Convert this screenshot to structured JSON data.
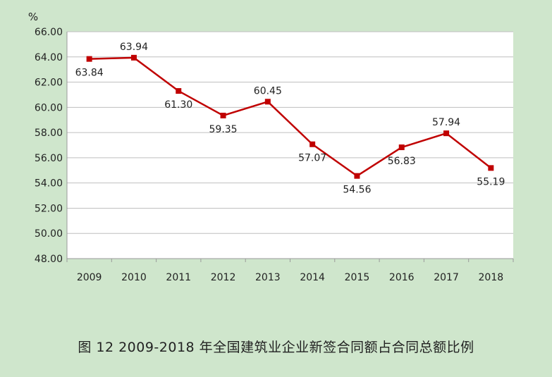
{
  "chart_data": {
    "type": "line",
    "title": "图 12 2009-2018 年全国建筑业企业新签合同额占合同总额比例",
    "unit_label": "%",
    "categories": [
      "2009",
      "2010",
      "2011",
      "2012",
      "2013",
      "2014",
      "2015",
      "2016",
      "2017",
      "2018"
    ],
    "values": [
      63.84,
      63.94,
      61.3,
      59.35,
      60.45,
      57.07,
      54.56,
      56.83,
      57.94,
      55.19
    ],
    "value_labels": [
      "63.84",
      "63.94",
      "61.30",
      "59.35",
      "60.45",
      "57.07",
      "54.56",
      "56.83",
      "57.94",
      "55.19"
    ],
    "ylim": [
      48,
      66
    ],
    "yticks": [
      "48.00",
      "50.00",
      "52.00",
      "54.00",
      "56.00",
      "58.00",
      "60.00",
      "62.00",
      "64.00",
      "66.00"
    ],
    "grid": true,
    "legend": "none",
    "colors": {
      "line": "#c00000",
      "plot_background": "#ffffff",
      "page_background": "#cfe6cc",
      "grid": "#bfbfbf"
    }
  }
}
